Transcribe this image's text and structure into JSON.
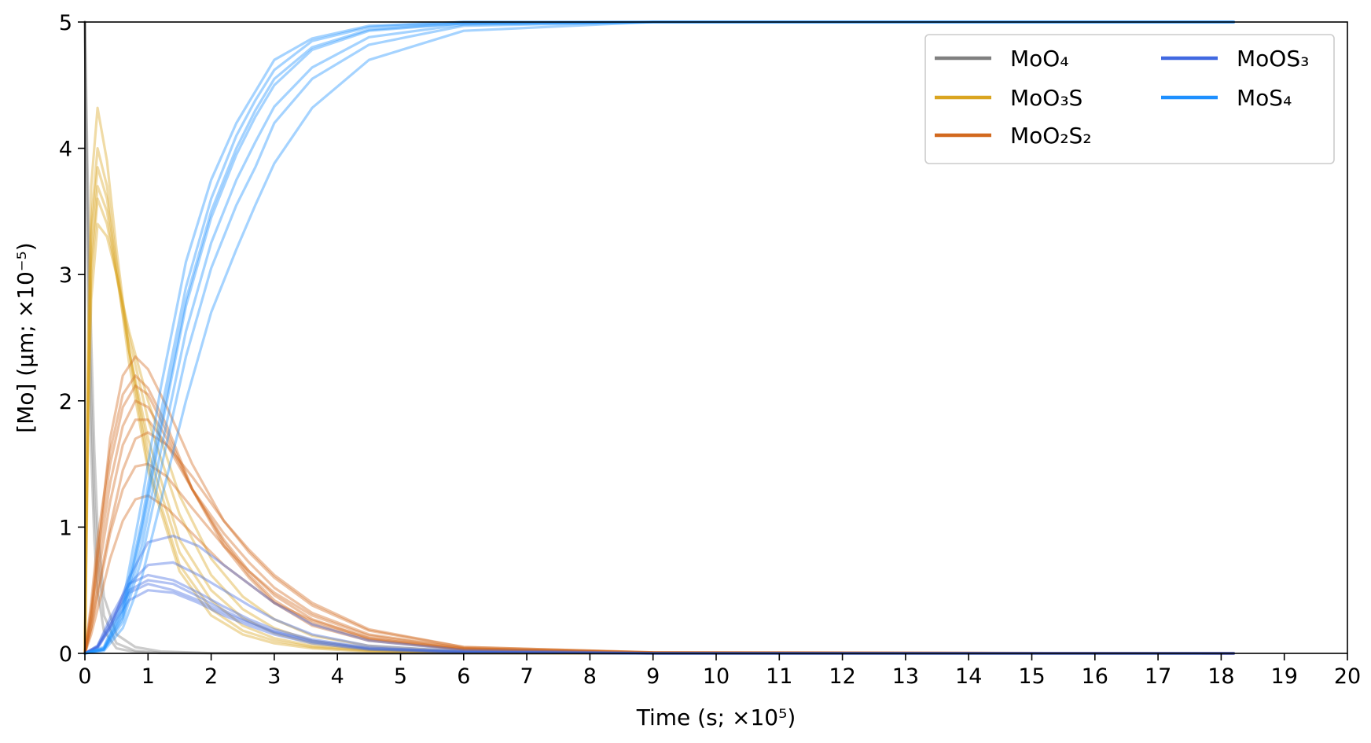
{
  "chart_data": {
    "type": "line",
    "title": "",
    "xlabel": "Time (s; ×10⁵)",
    "ylabel": "[Mo] (μm; ×10⁻⁵)",
    "xlim": [
      0,
      20
    ],
    "ylim": [
      0,
      5
    ],
    "xticks": [
      "0",
      "1",
      "2",
      "3",
      "4",
      "5",
      "6",
      "7",
      "8",
      "9",
      "10",
      "11",
      "12",
      "13",
      "14",
      "15",
      "16",
      "17",
      "18",
      "19",
      "20"
    ],
    "yticks": [
      "0",
      "1",
      "2",
      "3",
      "4",
      "5"
    ],
    "grid": false,
    "legend_position": "top-right",
    "legend": [
      {
        "label": "MoO₄",
        "color": "#808080"
      },
      {
        "label": "MoO₃S",
        "color": "#DAA520"
      },
      {
        "label": "MoO₂S₂",
        "color": "#D2691E"
      },
      {
        "label": "MoOS₃",
        "color": "#4169E1"
      },
      {
        "label": "MoS₄",
        "color": "#1E90FF"
      }
    ],
    "series": [
      {
        "color": "#808080",
        "x": [
          0,
          0.05,
          0.1,
          0.15,
          0.2,
          0.3,
          0.5,
          0.8,
          1.2,
          2,
          3,
          18.2
        ],
        "values": [
          5,
          3.2,
          2.0,
          1.2,
          0.75,
          0.3,
          0.08,
          0.02,
          0.005,
          0.001,
          0,
          0
        ]
      },
      {
        "color": "#808080",
        "x": [
          0,
          0.05,
          0.1,
          0.15,
          0.2,
          0.3,
          0.5,
          0.8,
          1.2,
          2,
          3,
          18.2
        ],
        "values": [
          5,
          2.8,
          1.6,
          0.9,
          0.5,
          0.18,
          0.04,
          0.01,
          0.002,
          0,
          0,
          0
        ]
      },
      {
        "color": "#808080",
        "x": [
          0,
          0.05,
          0.1,
          0.15,
          0.2,
          0.3,
          0.5,
          0.8,
          1.2,
          2,
          3,
          18.2
        ],
        "values": [
          5,
          3.6,
          2.5,
          1.6,
          1.0,
          0.45,
          0.15,
          0.05,
          0.015,
          0.002,
          0,
          0
        ]
      },
      {
        "color": "#DAA520",
        "x": [
          0,
          0.05,
          0.1,
          0.2,
          0.35,
          0.5,
          0.7,
          1.0,
          1.5,
          2,
          2.5,
          3,
          3.6,
          4.5,
          6,
          9,
          18.2
        ],
        "values": [
          0,
          2.5,
          3.7,
          4.32,
          3.9,
          3.2,
          2.4,
          1.5,
          0.7,
          0.35,
          0.18,
          0.1,
          0.05,
          0.02,
          0.005,
          0,
          0
        ]
      },
      {
        "color": "#DAA520",
        "x": [
          0,
          0.05,
          0.1,
          0.2,
          0.35,
          0.5,
          0.7,
          1.0,
          1.5,
          2,
          2.5,
          3,
          3.6,
          4.5,
          6,
          9,
          18.2
        ],
        "values": [
          0,
          2.2,
          3.4,
          4.0,
          3.7,
          3.1,
          2.4,
          1.6,
          0.8,
          0.42,
          0.22,
          0.12,
          0.06,
          0.025,
          0.006,
          0,
          0
        ]
      },
      {
        "color": "#DAA520",
        "x": [
          0,
          0.05,
          0.1,
          0.2,
          0.35,
          0.5,
          0.7,
          1.0,
          1.5,
          2,
          2.5,
          3,
          3.6,
          4.5,
          6,
          9,
          18.2
        ],
        "values": [
          0,
          2.0,
          3.1,
          3.7,
          3.5,
          3.0,
          2.4,
          1.7,
          0.9,
          0.5,
          0.28,
          0.16,
          0.08,
          0.03,
          0.008,
          0,
          0
        ]
      },
      {
        "color": "#DAA520",
        "x": [
          0,
          0.05,
          0.1,
          0.2,
          0.35,
          0.5,
          0.7,
          1.0,
          1.5,
          2,
          2.5,
          3,
          3.6,
          4.5,
          6,
          9,
          18.2
        ],
        "values": [
          0,
          1.9,
          3.0,
          3.6,
          3.4,
          3.0,
          2.5,
          1.85,
          1.1,
          0.62,
          0.35,
          0.2,
          0.1,
          0.04,
          0.01,
          0,
          0
        ]
      },
      {
        "color": "#DAA520",
        "x": [
          0,
          0.05,
          0.1,
          0.2,
          0.35,
          0.5,
          0.7,
          1.0,
          1.5,
          2,
          2.5,
          3,
          3.6,
          4.5,
          6,
          9,
          18.2
        ],
        "values": [
          0,
          1.7,
          2.8,
          3.4,
          3.3,
          3.0,
          2.55,
          2.0,
          1.25,
          0.75,
          0.45,
          0.27,
          0.14,
          0.06,
          0.015,
          0,
          0
        ]
      },
      {
        "color": "#DAA520",
        "x": [
          0,
          0.05,
          0.1,
          0.2,
          0.35,
          0.5,
          0.7,
          1.0,
          1.5,
          2,
          2.5,
          3,
          3.6,
          4.5,
          6,
          9,
          18.2
        ],
        "values": [
          0,
          2.1,
          3.3,
          3.85,
          3.6,
          3.05,
          2.3,
          1.45,
          0.65,
          0.3,
          0.15,
          0.08,
          0.04,
          0.015,
          0.004,
          0,
          0
        ]
      },
      {
        "color": "#D2691E",
        "x": [
          0,
          0.1,
          0.2,
          0.4,
          0.6,
          0.8,
          1.0,
          1.3,
          1.7,
          2.2,
          2.6,
          3,
          3.6,
          4.5,
          6,
          9,
          18.2
        ],
        "values": [
          0,
          0.4,
          0.9,
          1.6,
          2.05,
          2.2,
          2.1,
          1.8,
          1.3,
          0.85,
          0.6,
          0.4,
          0.22,
          0.1,
          0.03,
          0.005,
          0
        ]
      },
      {
        "color": "#D2691E",
        "x": [
          0,
          0.1,
          0.2,
          0.4,
          0.6,
          0.8,
          1.0,
          1.3,
          1.7,
          2.2,
          2.6,
          3,
          3.6,
          4.5,
          6,
          9,
          18.2
        ],
        "values": [
          0,
          0.35,
          0.8,
          1.5,
          1.95,
          2.12,
          2.05,
          1.75,
          1.3,
          0.88,
          0.62,
          0.42,
          0.24,
          0.11,
          0.03,
          0.005,
          0
        ]
      },
      {
        "color": "#D2691E",
        "x": [
          0,
          0.1,
          0.2,
          0.4,
          0.6,
          0.8,
          1.0,
          1.3,
          1.7,
          2.2,
          2.6,
          3,
          3.6,
          4.5,
          6,
          9,
          18.2
        ],
        "values": [
          0,
          0.3,
          0.7,
          1.35,
          1.8,
          2.0,
          1.95,
          1.7,
          1.3,
          0.9,
          0.65,
          0.46,
          0.27,
          0.12,
          0.035,
          0.006,
          0
        ]
      },
      {
        "color": "#D2691E",
        "x": [
          0,
          0.1,
          0.2,
          0.4,
          0.6,
          0.8,
          1.0,
          1.3,
          1.7,
          2.2,
          2.6,
          3,
          3.6,
          4.5,
          6,
          9,
          18.2
        ],
        "values": [
          0,
          0.25,
          0.6,
          1.2,
          1.65,
          1.85,
          1.85,
          1.65,
          1.3,
          0.95,
          0.72,
          0.52,
          0.32,
          0.15,
          0.04,
          0.007,
          0
        ]
      },
      {
        "color": "#D2691E",
        "x": [
          0,
          0.1,
          0.2,
          0.4,
          0.6,
          0.8,
          1.0,
          1.3,
          1.7,
          2.2,
          2.6,
          3,
          3.6,
          4.5,
          6,
          9,
          18.2
        ],
        "values": [
          0,
          0.2,
          0.5,
          1.0,
          1.45,
          1.7,
          1.75,
          1.65,
          1.4,
          1.05,
          0.82,
          0.62,
          0.4,
          0.19,
          0.05,
          0.008,
          0
        ]
      },
      {
        "color": "#D2691E",
        "x": [
          0,
          0.1,
          0.2,
          0.4,
          0.6,
          0.8,
          1.0,
          1.3,
          1.7,
          2.2,
          2.6,
          3,
          3.6,
          4.5,
          6,
          9,
          18.2
        ],
        "values": [
          0,
          0.3,
          0.75,
          1.7,
          2.2,
          2.35,
          2.25,
          1.95,
          1.5,
          1.05,
          0.8,
          0.6,
          0.38,
          0.18,
          0.05,
          0.008,
          0
        ]
      },
      {
        "color": "#D2691E",
        "x": [
          0,
          0.1,
          0.2,
          0.4,
          0.6,
          0.8,
          1.0,
          1.3,
          1.7,
          2.2,
          2.6,
          3,
          3.6,
          4.5,
          6,
          9,
          18.2
        ],
        "values": [
          0,
          0.15,
          0.35,
          0.75,
          1.05,
          1.22,
          1.25,
          1.15,
          0.95,
          0.7,
          0.55,
          0.4,
          0.26,
          0.12,
          0.03,
          0.005,
          0
        ]
      },
      {
        "color": "#D2691E",
        "x": [
          0,
          0.1,
          0.2,
          0.4,
          0.6,
          0.8,
          1.0,
          1.3,
          1.7,
          2.2,
          2.6,
          3,
          3.6,
          4.5,
          6,
          9,
          18.2
        ],
        "values": [
          0,
          0.2,
          0.45,
          0.95,
          1.3,
          1.48,
          1.5,
          1.4,
          1.15,
          0.85,
          0.65,
          0.48,
          0.3,
          0.14,
          0.04,
          0.006,
          0
        ]
      },
      {
        "color": "#4169E1",
        "x": [
          0,
          0.2,
          0.4,
          0.7,
          1.0,
          1.4,
          1.8,
          2.2,
          2.6,
          3,
          3.6,
          4.5,
          6,
          9,
          18.2
        ],
        "values": [
          0,
          0.05,
          0.2,
          0.42,
          0.5,
          0.48,
          0.4,
          0.3,
          0.22,
          0.15,
          0.08,
          0.03,
          0.008,
          0,
          0
        ]
      },
      {
        "color": "#4169E1",
        "x": [
          0,
          0.2,
          0.4,
          0.7,
          1.0,
          1.4,
          1.8,
          2.2,
          2.6,
          3,
          3.6,
          4.5,
          6,
          9,
          18.2
        ],
        "values": [
          0,
          0.06,
          0.25,
          0.5,
          0.58,
          0.55,
          0.45,
          0.34,
          0.25,
          0.17,
          0.09,
          0.035,
          0.009,
          0,
          0
        ]
      },
      {
        "color": "#4169E1",
        "x": [
          0,
          0.2,
          0.4,
          0.7,
          1.0,
          1.4,
          1.8,
          2.2,
          2.6,
          3,
          3.6,
          4.5,
          6,
          9,
          18.2
        ],
        "values": [
          0,
          0.05,
          0.22,
          0.55,
          0.7,
          0.72,
          0.62,
          0.5,
          0.38,
          0.27,
          0.15,
          0.06,
          0.015,
          0,
          0
        ]
      },
      {
        "color": "#4169E1",
        "x": [
          0,
          0.2,
          0.4,
          0.7,
          1.0,
          1.4,
          1.8,
          2.2,
          2.6,
          3,
          3.6,
          4.5,
          6,
          9,
          18.2
        ],
        "values": [
          0,
          0.04,
          0.2,
          0.6,
          0.88,
          0.93,
          0.85,
          0.7,
          0.55,
          0.4,
          0.23,
          0.1,
          0.025,
          0.002,
          0
        ]
      },
      {
        "color": "#4169E1",
        "x": [
          0,
          0.2,
          0.4,
          0.7,
          1.0,
          1.4,
          1.8,
          2.2,
          2.6,
          3,
          3.6,
          4.5,
          6,
          9,
          18.2
        ],
        "values": [
          0,
          0.05,
          0.22,
          0.48,
          0.55,
          0.5,
          0.42,
          0.32,
          0.24,
          0.17,
          0.1,
          0.04,
          0.01,
          0,
          0
        ]
      },
      {
        "color": "#4169E1",
        "x": [
          0,
          0.2,
          0.4,
          0.7,
          1.0,
          1.4,
          1.8,
          2.2,
          2.6,
          3,
          3.6,
          4.5,
          6,
          9,
          18.2
        ],
        "values": [
          0,
          0.06,
          0.28,
          0.55,
          0.62,
          0.58,
          0.48,
          0.37,
          0.27,
          0.19,
          0.11,
          0.045,
          0.012,
          0,
          0
        ]
      },
      {
        "color": "#1E90FF",
        "x": [
          0,
          0.3,
          0.6,
          0.9,
          1.2,
          1.6,
          2,
          2.4,
          2.7,
          3,
          3.6,
          4.5,
          6,
          9,
          18.2
        ],
        "values": [
          0,
          0.05,
          0.4,
          1.2,
          2.1,
          3.1,
          3.75,
          4.2,
          4.45,
          4.7,
          4.87,
          4.97,
          5,
          5,
          5
        ]
      },
      {
        "color": "#1E90FF",
        "x": [
          0,
          0.3,
          0.6,
          0.9,
          1.2,
          1.6,
          2,
          2.4,
          2.7,
          3,
          3.6,
          4.5,
          6,
          9,
          18.2
        ],
        "values": [
          0,
          0.04,
          0.35,
          1.05,
          1.9,
          2.9,
          3.6,
          4.1,
          4.38,
          4.62,
          4.85,
          4.96,
          5,
          5,
          5
        ]
      },
      {
        "color": "#1E90FF",
        "x": [
          0,
          0.3,
          0.6,
          0.9,
          1.2,
          1.6,
          2,
          2.4,
          2.7,
          3,
          3.6,
          4.5,
          6,
          9,
          18.2
        ],
        "values": [
          0,
          0.03,
          0.28,
          0.85,
          1.6,
          2.55,
          3.25,
          3.75,
          4.05,
          4.33,
          4.64,
          4.88,
          4.98,
          5,
          5
        ]
      },
      {
        "color": "#1E90FF",
        "x": [
          0,
          0.3,
          0.6,
          0.9,
          1.2,
          1.6,
          2,
          2.4,
          2.7,
          3,
          3.6,
          4.5,
          6,
          9,
          18.2
        ],
        "values": [
          0,
          0.03,
          0.25,
          0.75,
          1.45,
          2.35,
          3.05,
          3.55,
          3.85,
          4.2,
          4.55,
          4.82,
          4.97,
          5,
          5
        ]
      },
      {
        "color": "#1E90FF",
        "x": [
          0,
          0.3,
          0.6,
          0.9,
          1.2,
          1.6,
          2,
          2.4,
          2.7,
          3,
          3.6,
          4.5,
          6,
          9,
          18.2
        ],
        "values": [
          0,
          0.02,
          0.2,
          0.6,
          1.2,
          2.0,
          2.7,
          3.2,
          3.55,
          3.88,
          4.32,
          4.7,
          4.93,
          5,
          5
        ]
      },
      {
        "color": "#1E90FF",
        "x": [
          0,
          0.3,
          0.6,
          0.9,
          1.2,
          1.6,
          2,
          2.4,
          2.7,
          3,
          3.6,
          4.5,
          6,
          9,
          18.2
        ],
        "values": [
          0,
          0.04,
          0.33,
          1.0,
          1.8,
          2.8,
          3.5,
          4.0,
          4.3,
          4.55,
          4.8,
          4.94,
          4.99,
          5,
          5
        ]
      },
      {
        "color": "#1E90FF",
        "x": [
          0,
          0.3,
          0.6,
          0.9,
          1.2,
          1.6,
          2,
          2.4,
          2.7,
          3,
          3.6,
          4.5,
          6,
          9,
          18.2
        ],
        "values": [
          0,
          0.03,
          0.3,
          0.95,
          1.75,
          2.75,
          3.45,
          3.95,
          4.25,
          4.5,
          4.78,
          4.93,
          4.99,
          5,
          5
        ]
      }
    ]
  }
}
